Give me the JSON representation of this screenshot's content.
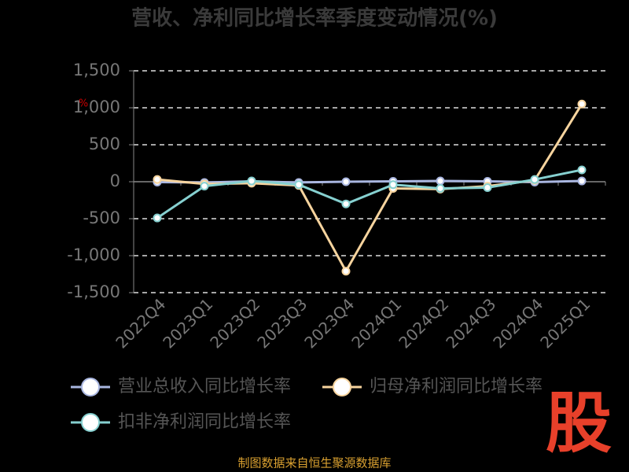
{
  "chart_data": {
    "type": "line",
    "title": "营收、净利同比增长率季度变动情况(%)",
    "y_unit": "%",
    "categories": [
      "2022Q4",
      "2023Q1",
      "2023Q2",
      "2023Q3",
      "2023Q4",
      "2024Q1",
      "2024Q2",
      "2024Q3",
      "2024Q4",
      "2025Q1"
    ],
    "series": [
      {
        "name": "营业总收入同比增长率",
        "color": "#a9b6e0",
        "values": [
          -5,
          -10,
          5,
          -10,
          0,
          5,
          10,
          5,
          -5,
          10
        ]
      },
      {
        "name": "归母净利润同比增长率",
        "color": "#f7d49e",
        "values": [
          30,
          -30,
          -20,
          -50,
          -1210,
          -90,
          -100,
          -60,
          20,
          1050
        ]
      },
      {
        "name": "扣非净利润同比增长率",
        "color": "#86d0d0",
        "values": [
          -490,
          -60,
          10,
          -40,
          -300,
          -40,
          -90,
          -80,
          30,
          160
        ]
      }
    ],
    "ylim": [
      -1500,
      1500
    ],
    "yticks": [
      {
        "value": -1500,
        "label": "-1,500"
      },
      {
        "value": -1000,
        "label": "-1,000"
      },
      -500,
      0,
      500,
      {
        "value": 1000,
        "label": "1,000"
      },
      {
        "value": 1500,
        "label": "1,500"
      }
    ],
    "grid": true,
    "source": "制图数据来自恒生聚源数据库",
    "watermark": "股"
  }
}
